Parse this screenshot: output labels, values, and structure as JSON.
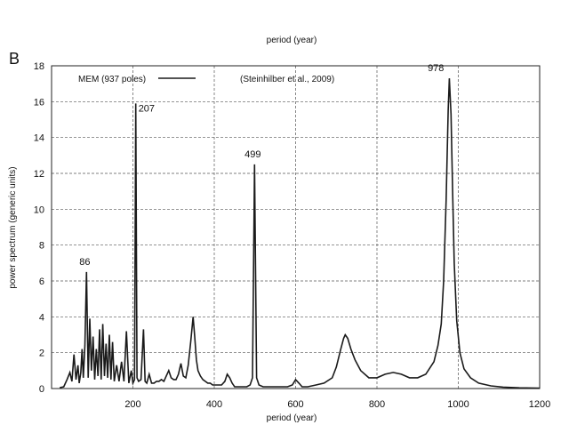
{
  "panel_label": "B",
  "chart_data": {
    "type": "line",
    "top_label": "period (year)",
    "xlabel": "period (year)",
    "ylabel": "power spectrum (generic units)",
    "xlim": [
      0,
      1200
    ],
    "ylim": [
      0,
      18
    ],
    "x_ticks": [
      200,
      400,
      600,
      800,
      1000,
      1200
    ],
    "y_ticks": [
      0,
      2,
      4,
      6,
      8,
      10,
      12,
      14,
      16,
      18
    ],
    "grid": {
      "vertical": true,
      "horizontal": true,
      "style": "dashed"
    },
    "legend": {
      "entry": "MEM (937 poles)",
      "position": "top-left"
    },
    "annotation": "(Steinhilber et al., 2009)",
    "line_color": "#1a1a1a",
    "peak_labels": [
      {
        "text": "86",
        "x": 86,
        "y": 6.5
      },
      {
        "text": "207",
        "x": 207,
        "y": 15.9
      },
      {
        "text": "499",
        "x": 499,
        "y": 12.5
      },
      {
        "text": "978",
        "x": 978,
        "y": 17.3
      }
    ],
    "series": [
      {
        "x": [
          20,
          30,
          38,
          45,
          50,
          55,
          60,
          65,
          68,
          72,
          75,
          78,
          82,
          86,
          90,
          94,
          98,
          102,
          106,
          110,
          114,
          118,
          122,
          126,
          130,
          134,
          138,
          142,
          146,
          150,
          154,
          160,
          166,
          172,
          178,
          184,
          190,
          196,
          200,
          204,
          207,
          210,
          214,
          220,
          226,
          230,
          234,
          240,
          246,
          252,
          258,
          264,
          270,
          276,
          282,
          288,
          294,
          300,
          306,
          312,
          318,
          324,
          330,
          336,
          342,
          348,
          352,
          356,
          360,
          366,
          372,
          378,
          384,
          390,
          396,
          402,
          410,
          418,
          426,
          432,
          438,
          444,
          450,
          460,
          470,
          480,
          488,
          494,
          499,
          504,
          510,
          520,
          540,
          560,
          580,
          592,
          600,
          608,
          616,
          630,
          650,
          670,
          690,
          700,
          710,
          718,
          722,
          728,
          736,
          746,
          760,
          780,
          800,
          820,
          840,
          860,
          880,
          900,
          920,
          940,
          950,
          958,
          964,
          970,
          975,
          978,
          982,
          986,
          990,
          996,
          1004,
          1014,
          1030,
          1050,
          1080,
          1110,
          1150,
          1200
        ],
        "y": [
          0.05,
          0.1,
          0.5,
          0.9,
          0.4,
          1.9,
          0.5,
          1.3,
          0.3,
          0.9,
          2.2,
          0.6,
          2.4,
          6.5,
          0.6,
          3.9,
          1.0,
          2.9,
          0.5,
          2.2,
          0.7,
          3.3,
          0.5,
          3.6,
          0.7,
          2.5,
          0.6,
          3.0,
          0.5,
          2.6,
          0.4,
          1.3,
          0.4,
          1.5,
          0.4,
          3.2,
          0.3,
          1.0,
          0.3,
          0.5,
          15.9,
          0.6,
          0.4,
          0.5,
          3.3,
          0.4,
          0.3,
          0.8,
          0.3,
          0.3,
          0.4,
          0.4,
          0.5,
          0.4,
          0.7,
          1.0,
          0.6,
          0.5,
          0.5,
          0.8,
          1.4,
          0.7,
          0.6,
          1.3,
          2.6,
          4.0,
          2.9,
          1.6,
          1.0,
          0.7,
          0.5,
          0.4,
          0.3,
          0.3,
          0.2,
          0.2,
          0.2,
          0.2,
          0.4,
          0.8,
          0.6,
          0.3,
          0.1,
          0.1,
          0.1,
          0.1,
          0.2,
          0.6,
          12.5,
          0.6,
          0.2,
          0.1,
          0.1,
          0.1,
          0.1,
          0.2,
          0.5,
          0.3,
          0.1,
          0.1,
          0.2,
          0.3,
          0.6,
          1.2,
          2.1,
          2.8,
          3.0,
          2.8,
          2.2,
          1.6,
          1.0,
          0.6,
          0.6,
          0.8,
          0.9,
          0.8,
          0.6,
          0.6,
          0.8,
          1.5,
          2.4,
          3.6,
          6.0,
          10.5,
          15.5,
          17.3,
          15.3,
          11.0,
          7.0,
          3.8,
          2.0,
          1.1,
          0.6,
          0.3,
          0.15,
          0.08,
          0.04,
          0.02
        ]
      }
    ]
  }
}
